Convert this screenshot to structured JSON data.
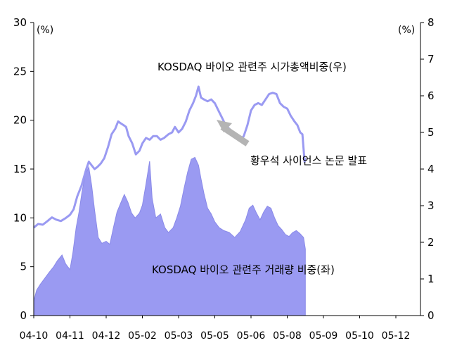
{
  "chart_data": {
    "type": "area",
    "categories": [
      "04-10",
      "04-11",
      "04-12",
      "05-02",
      "05-03",
      "05-05",
      "05-06",
      "05-08",
      "05-09",
      "05-10",
      "05-12"
    ],
    "left_axis": {
      "unit": "(%)",
      "ticks": [
        0,
        5,
        10,
        15,
        20,
        25,
        30
      ],
      "ylim": [
        0,
        30
      ]
    },
    "right_axis": {
      "unit": "(%)",
      "ticks": [
        0,
        1,
        2,
        3,
        4,
        5,
        6,
        7,
        8
      ],
      "ylim": [
        0,
        8
      ]
    },
    "series": [
      {
        "name": "KOSDAQ 바이오 관련주 거래량 비중(좌)",
        "type": "area",
        "axis": "left",
        "color": "#9a9af2",
        "points": [
          [
            0.0,
            1.5
          ],
          [
            0.08,
            2.6
          ],
          [
            0.18,
            3.2
          ],
          [
            0.3,
            3.8
          ],
          [
            0.42,
            4.4
          ],
          [
            0.55,
            5.0
          ],
          [
            0.65,
            5.6
          ],
          [
            0.78,
            6.2
          ],
          [
            0.88,
            5.3
          ],
          [
            1.0,
            4.7
          ],
          [
            1.08,
            6.4
          ],
          [
            1.17,
            9.0
          ],
          [
            1.25,
            10.6
          ],
          [
            1.33,
            12.6
          ],
          [
            1.42,
            14.4
          ],
          [
            1.52,
            15.2
          ],
          [
            1.6,
            13.3
          ],
          [
            1.68,
            10.8
          ],
          [
            1.78,
            8.0
          ],
          [
            1.88,
            7.4
          ],
          [
            2.0,
            7.6
          ],
          [
            2.1,
            7.3
          ],
          [
            2.2,
            9.0
          ],
          [
            2.3,
            10.6
          ],
          [
            2.4,
            11.5
          ],
          [
            2.5,
            12.4
          ],
          [
            2.6,
            11.6
          ],
          [
            2.7,
            10.5
          ],
          [
            2.8,
            10.0
          ],
          [
            2.92,
            10.5
          ],
          [
            3.0,
            11.3
          ],
          [
            3.1,
            13.5
          ],
          [
            3.2,
            15.8
          ],
          [
            3.27,
            12.0
          ],
          [
            3.37,
            10.0
          ],
          [
            3.5,
            10.4
          ],
          [
            3.62,
            9.0
          ],
          [
            3.72,
            8.5
          ],
          [
            3.85,
            9.0
          ],
          [
            3.95,
            10.0
          ],
          [
            4.05,
            11.2
          ],
          [
            4.15,
            13.0
          ],
          [
            4.25,
            14.7
          ],
          [
            4.35,
            16.0
          ],
          [
            4.45,
            16.2
          ],
          [
            4.55,
            15.4
          ],
          [
            4.62,
            14.0
          ],
          [
            4.7,
            12.5
          ],
          [
            4.8,
            11.0
          ],
          [
            4.9,
            10.4
          ],
          [
            5.0,
            9.6
          ],
          [
            5.12,
            9.0
          ],
          [
            5.25,
            8.7
          ],
          [
            5.4,
            8.5
          ],
          [
            5.55,
            8.0
          ],
          [
            5.7,
            8.6
          ],
          [
            5.85,
            9.8
          ],
          [
            5.95,
            11.0
          ],
          [
            6.05,
            11.3
          ],
          [
            6.15,
            10.5
          ],
          [
            6.25,
            9.8
          ],
          [
            6.35,
            10.6
          ],
          [
            6.45,
            11.2
          ],
          [
            6.55,
            11.0
          ],
          [
            6.65,
            10.0
          ],
          [
            6.75,
            9.2
          ],
          [
            6.85,
            8.8
          ],
          [
            6.95,
            8.3
          ],
          [
            7.05,
            8.1
          ],
          [
            7.15,
            8.5
          ],
          [
            7.25,
            8.7
          ],
          [
            7.35,
            8.4
          ],
          [
            7.45,
            8.0
          ],
          [
            7.5,
            6.8
          ]
        ]
      },
      {
        "name": "KOSDAQ 바이오 관련주 시가총액비중(우)",
        "type": "line",
        "axis": "right",
        "color": "#9a9af2",
        "points": [
          [
            0.0,
            2.4
          ],
          [
            0.12,
            2.5
          ],
          [
            0.25,
            2.48
          ],
          [
            0.38,
            2.58
          ],
          [
            0.5,
            2.68
          ],
          [
            0.62,
            2.62
          ],
          [
            0.75,
            2.58
          ],
          [
            0.88,
            2.66
          ],
          [
            1.0,
            2.75
          ],
          [
            1.1,
            2.9
          ],
          [
            1.2,
            3.25
          ],
          [
            1.32,
            3.55
          ],
          [
            1.45,
            4.0
          ],
          [
            1.52,
            4.2
          ],
          [
            1.6,
            4.1
          ],
          [
            1.68,
            4.0
          ],
          [
            1.75,
            4.05
          ],
          [
            1.85,
            4.15
          ],
          [
            1.95,
            4.3
          ],
          [
            2.05,
            4.6
          ],
          [
            2.15,
            4.95
          ],
          [
            2.25,
            5.1
          ],
          [
            2.33,
            5.3
          ],
          [
            2.4,
            5.25
          ],
          [
            2.48,
            5.2
          ],
          [
            2.55,
            5.15
          ],
          [
            2.62,
            4.9
          ],
          [
            2.72,
            4.7
          ],
          [
            2.82,
            4.4
          ],
          [
            2.92,
            4.5
          ],
          [
            3.0,
            4.7
          ],
          [
            3.1,
            4.85
          ],
          [
            3.2,
            4.8
          ],
          [
            3.3,
            4.9
          ],
          [
            3.4,
            4.9
          ],
          [
            3.5,
            4.8
          ],
          [
            3.6,
            4.85
          ],
          [
            3.72,
            4.95
          ],
          [
            3.82,
            5.0
          ],
          [
            3.9,
            5.15
          ],
          [
            4.0,
            5.0
          ],
          [
            4.1,
            5.1
          ],
          [
            4.2,
            5.3
          ],
          [
            4.3,
            5.6
          ],
          [
            4.4,
            5.8
          ],
          [
            4.48,
            6.0
          ],
          [
            4.55,
            6.25
          ],
          [
            4.62,
            5.95
          ],
          [
            4.7,
            5.9
          ],
          [
            4.8,
            5.85
          ],
          [
            4.9,
            5.9
          ],
          [
            5.0,
            5.8
          ],
          [
            5.1,
            5.6
          ],
          [
            5.2,
            5.4
          ],
          [
            5.3,
            5.2
          ],
          [
            5.4,
            5.1
          ],
          [
            5.5,
            5.0
          ],
          [
            5.6,
            4.85
          ],
          [
            5.7,
            4.8
          ],
          [
            5.8,
            4.9
          ],
          [
            5.9,
            5.2
          ],
          [
            6.0,
            5.6
          ],
          [
            6.1,
            5.75
          ],
          [
            6.2,
            5.8
          ],
          [
            6.3,
            5.75
          ],
          [
            6.4,
            5.9
          ],
          [
            6.5,
            6.05
          ],
          [
            6.6,
            6.08
          ],
          [
            6.7,
            6.05
          ],
          [
            6.8,
            5.8
          ],
          [
            6.9,
            5.7
          ],
          [
            7.0,
            5.65
          ],
          [
            7.1,
            5.45
          ],
          [
            7.2,
            5.3
          ],
          [
            7.28,
            5.2
          ],
          [
            7.36,
            5.0
          ],
          [
            7.42,
            4.95
          ],
          [
            7.48,
            4.2
          ],
          [
            7.5,
            4.3
          ]
        ]
      }
    ],
    "annotations": {
      "market_cap_label": "KOSDAQ 바이오 관련주 시가총액비중(우)",
      "volume_label": "KOSDAQ 바이오 관련주 거래량 비중(좌)",
      "event_label": "황우석 사이언스 논문 발표",
      "arrow_color": "#b4b4b4"
    },
    "xlabel": "",
    "ylabel": ""
  }
}
